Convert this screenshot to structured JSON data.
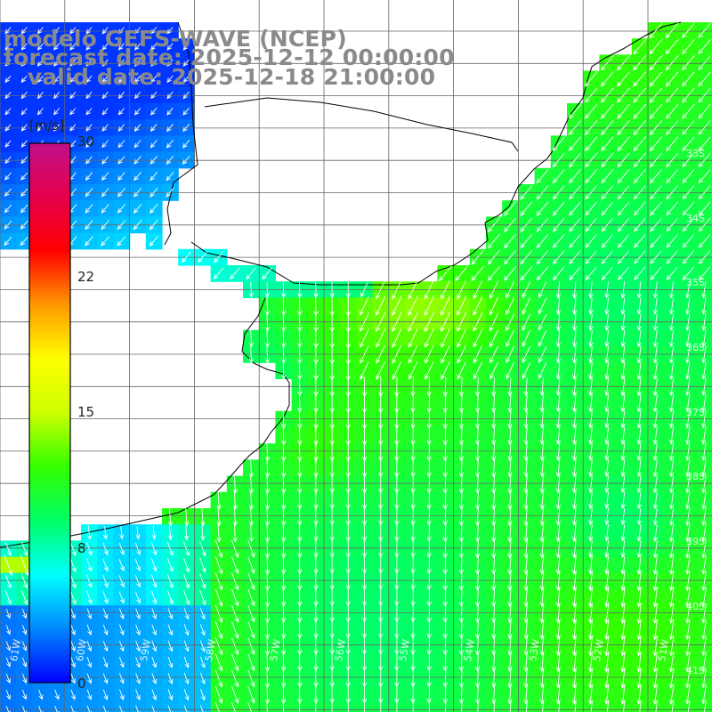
{
  "title": {
    "model": "modelo GEFS-WAVE (NCEP)",
    "forecast": "forecast date: 2025-12-12 00:00:00",
    "valid": "   valid date: 2025-12-18 21:00:00"
  },
  "colorbar": {
    "unit": "[m/s]",
    "ticks": [
      "30",
      "22",
      "15",
      "8",
      "0"
    ],
    "colors": [
      "#0000ff",
      "#0088ff",
      "#00ffff",
      "#00ff66",
      "#33ff00",
      "#ccff00",
      "#ffff00",
      "#ff9900",
      "#ff0000",
      "#e6004d",
      "#c0108a"
    ]
  },
  "map": {
    "variable": "wind speed and direction",
    "land_color": "#ffffff",
    "grid_color": "#666666",
    "coast_color": "#000000",
    "lat_labels": [
      "33S",
      "34S",
      "35S",
      "36S",
      "37S",
      "38S",
      "39S",
      "40S",
      "41S"
    ],
    "lon_labels": [
      "61W",
      "60W",
      "59W",
      "58W",
      "57W",
      "56W",
      "55W",
      "54W",
      "53W",
      "52W",
      "51W"
    ]
  }
}
